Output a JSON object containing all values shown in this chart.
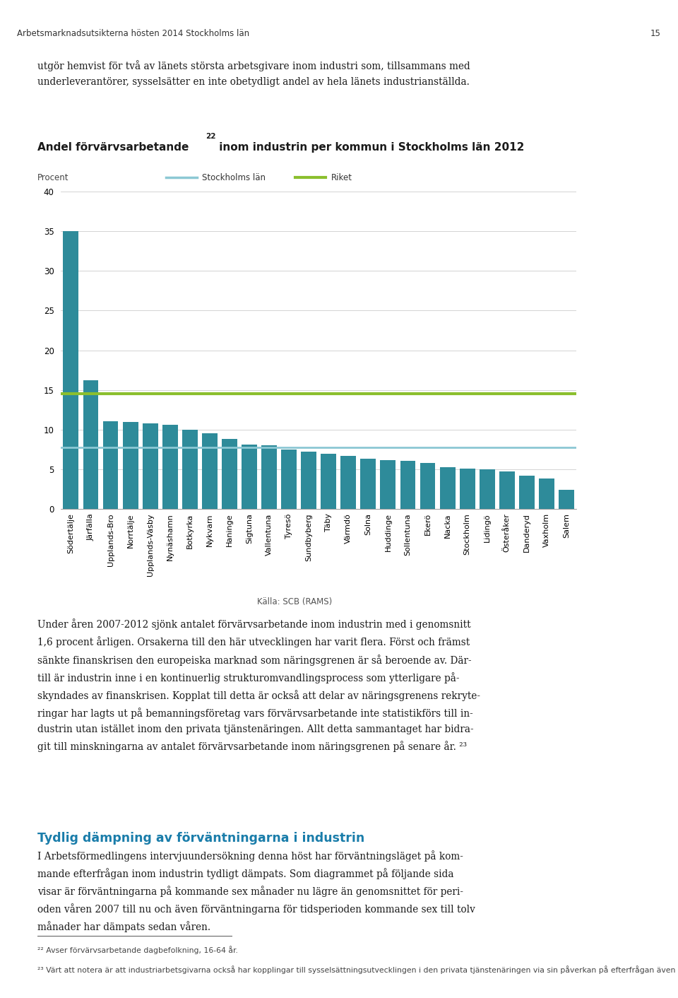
{
  "title_part1": "Andel förvärvsarbetande",
  "title_sup": "22",
  "title_part2": " inom industrin per kommun i Stockholms län 2012",
  "ylabel": "Procent",
  "source": "Källa: SCB (RAMS)",
  "ylim": [
    0,
    40
  ],
  "yticks": [
    0,
    5,
    10,
    15,
    20,
    25,
    30,
    35,
    40
  ],
  "categories": [
    "Södertälje",
    "Järfälla",
    "Upplands-Bro",
    "Norrtälje",
    "Upplands-Väsby",
    "Nynäshamn",
    "Botkyrka",
    "Nykvarn",
    "Haninge",
    "Sigtuna",
    "Vallentuna",
    "Tyresö",
    "Sundbyberg",
    "Täby",
    "Värmdö",
    "Solna",
    "Huddinge",
    "Sollentuna",
    "Ekerö",
    "Nacka",
    "Stockholm",
    "Lidingö",
    "Österåker",
    "Danderyd",
    "Vaxholm",
    "Salem"
  ],
  "values": [
    35.0,
    16.2,
    11.1,
    11.0,
    10.8,
    10.6,
    10.0,
    9.5,
    8.8,
    8.1,
    8.0,
    7.5,
    7.2,
    7.0,
    6.7,
    6.3,
    6.2,
    6.1,
    5.8,
    5.3,
    5.1,
    5.0,
    4.7,
    4.2,
    3.8,
    2.4
  ],
  "bar_color": "#2E8B9A",
  "ref_line_county": 7.8,
  "ref_line_riket": 14.5,
  "ref_line_county_color": "#8CC8D4",
  "ref_line_riket_color": "#8BBF2E",
  "ref_line_county_label": "Stockholms län",
  "ref_line_riket_label": "Riket",
  "page_header": "Arbetsmarknadsutsikterna hösten 2014 Stockholms län",
  "page_number": "15",
  "footnote_22": "Avser förvärvsarbetande dagbefolkning, 16-64 år.",
  "footnote_23": "Värt att notera är att industriarbetsgivarna också har kopplingar till sysselsättningsutvecklingen i den privata tjänstenäringen via sin påverkan på efterfrågan även på andra företagstjänster."
}
